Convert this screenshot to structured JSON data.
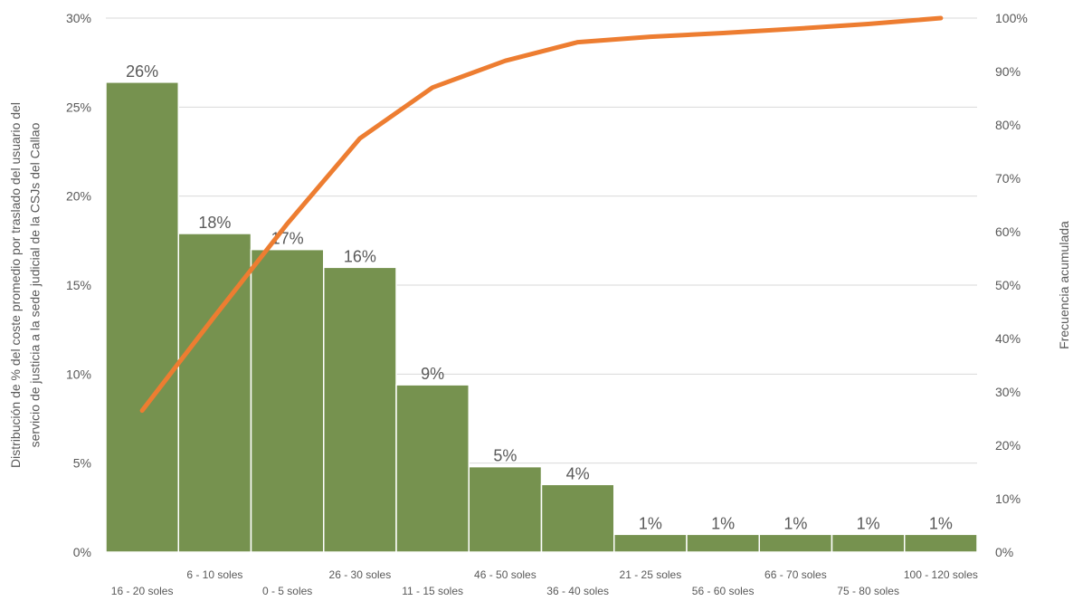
{
  "chart_data": {
    "type": "bar",
    "categories": [
      "16 - 20 soles",
      "6 - 10 soles",
      "0 - 5 soles",
      "26 - 30 soles",
      "11 - 15 soles",
      "46 - 50 soles",
      "36 - 40 soles",
      "21 - 25 soles",
      "56 - 60 soles",
      "66 - 70 soles",
      "75 - 80 soles",
      "100 - 120 soles"
    ],
    "series": [
      {
        "type": "bar",
        "values": [
          26.4,
          17.9,
          17.0,
          16.0,
          9.4,
          4.8,
          3.8,
          1.0,
          1.0,
          1.0,
          1.0,
          1.0
        ],
        "data_labels": [
          "26%",
          "18%",
          "17%",
          "16%",
          "9%",
          "5%",
          "4%",
          "1%",
          "1%",
          "1%",
          "1%",
          "1%"
        ],
        "color": "#76924f"
      },
      {
        "type": "line",
        "axis": "secondary",
        "values": [
          26.5,
          44.2,
          61.5,
          77.5,
          87.0,
          92.0,
          95.5,
          96.5,
          97.2,
          98.0,
          98.9,
          100.0
        ],
        "color": "#ed7d31"
      }
    ],
    "ylabel_line1": "Distribución de % del coste promedio por traslado del usuario del",
    "ylabel_line2": "servicio de justicia  a la sede judicial de la CSJs del Callao",
    "y2label": "Frecuencia acumulada",
    "ylim": [
      0,
      30
    ],
    "y2lim": [
      0,
      100
    ],
    "yticks": [
      "0%",
      "5%",
      "10%",
      "15%",
      "20%",
      "25%",
      "30%"
    ],
    "y2ticks": [
      "0%",
      "10%",
      "20%",
      "30%",
      "40%",
      "50%",
      "60%",
      "70%",
      "80%",
      "90%",
      "100%"
    ],
    "grid": true,
    "colors": {
      "bar": "#76924f",
      "line": "#ed7d31",
      "grid": "#d9d9d9",
      "text": "#595959"
    }
  }
}
